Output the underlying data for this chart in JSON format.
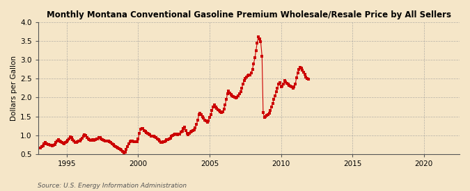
{
  "title": "Monthly Montana Conventional Gasoline Premium Wholesale/Resale Price by All Sellers",
  "ylabel": "Dollars per Gallon",
  "source": "Source: U.S. Energy Information Administration",
  "background_color": "#f5e6c8",
  "line_color": "#cc0000",
  "marker": "s",
  "markersize": 2.5,
  "linewidth": 0.8,
  "xlim": [
    1993.0,
    2022.5
  ],
  "ylim": [
    0.5,
    4.0
  ],
  "yticks": [
    0.5,
    1.0,
    1.5,
    2.0,
    2.5,
    3.0,
    3.5,
    4.0
  ],
  "xticks": [
    1995,
    2000,
    2005,
    2010,
    2015,
    2020
  ],
  "dates": [
    1993.17,
    1993.25,
    1993.33,
    1993.42,
    1993.5,
    1993.58,
    1993.67,
    1993.75,
    1993.83,
    1993.92,
    1994.0,
    1994.08,
    1994.17,
    1994.25,
    1994.33,
    1994.42,
    1994.5,
    1994.58,
    1994.67,
    1994.75,
    1994.83,
    1994.92,
    1995.0,
    1995.08,
    1995.17,
    1995.25,
    1995.33,
    1995.42,
    1995.5,
    1995.58,
    1995.67,
    1995.75,
    1995.83,
    1995.92,
    1996.0,
    1996.08,
    1996.17,
    1996.25,
    1996.33,
    1996.42,
    1996.5,
    1996.58,
    1996.67,
    1996.75,
    1996.83,
    1996.92,
    1997.0,
    1997.08,
    1997.17,
    1997.25,
    1997.33,
    1997.42,
    1997.5,
    1997.58,
    1997.67,
    1997.75,
    1997.83,
    1997.92,
    1998.0,
    1998.08,
    1998.17,
    1998.25,
    1998.33,
    1998.42,
    1998.5,
    1998.58,
    1998.67,
    1998.75,
    1998.83,
    1998.92,
    1999.0,
    1999.08,
    1999.17,
    1999.25,
    1999.33,
    1999.42,
    1999.5,
    1999.58,
    1999.67,
    1999.75,
    1999.83,
    1999.92,
    2000.0,
    2000.08,
    2000.17,
    2000.25,
    2000.33,
    2000.42,
    2000.5,
    2000.58,
    2000.67,
    2000.75,
    2000.83,
    2000.92,
    2001.0,
    2001.08,
    2001.17,
    2001.25,
    2001.33,
    2001.42,
    2001.5,
    2001.58,
    2001.67,
    2001.75,
    2001.83,
    2001.92,
    2002.0,
    2002.08,
    2002.17,
    2002.25,
    2002.33,
    2002.42,
    2002.5,
    2002.58,
    2002.67,
    2002.75,
    2002.83,
    2002.92,
    2003.0,
    2003.08,
    2003.17,
    2003.25,
    2003.33,
    2003.42,
    2003.5,
    2003.58,
    2003.67,
    2003.75,
    2003.83,
    2003.92,
    2004.0,
    2004.08,
    2004.17,
    2004.25,
    2004.33,
    2004.42,
    2004.5,
    2004.58,
    2004.67,
    2004.75,
    2004.83,
    2004.92,
    2005.0,
    2005.08,
    2005.17,
    2005.25,
    2005.33,
    2005.42,
    2005.5,
    2005.58,
    2005.67,
    2005.75,
    2005.83,
    2005.92,
    2006.0,
    2006.08,
    2006.17,
    2006.25,
    2006.33,
    2006.42,
    2006.5,
    2006.58,
    2006.67,
    2006.75,
    2006.83,
    2006.92,
    2007.0,
    2007.08,
    2007.17,
    2007.25,
    2007.33,
    2007.42,
    2007.5,
    2007.58,
    2007.67,
    2007.75,
    2007.83,
    2007.92,
    2008.0,
    2008.08,
    2008.17,
    2008.25,
    2008.33,
    2008.42,
    2008.5,
    2008.58,
    2008.67,
    2008.75,
    2008.83,
    2008.92,
    2009.0,
    2009.08,
    2009.17,
    2009.25,
    2009.33,
    2009.42,
    2009.5,
    2009.58,
    2009.67,
    2009.75,
    2009.83,
    2009.92,
    2010.0,
    2010.08,
    2010.17,
    2010.25,
    2010.33,
    2010.42,
    2010.5,
    2010.58,
    2010.67,
    2010.75,
    2010.83,
    2010.92,
    2011.0,
    2011.08,
    2011.17,
    2011.25,
    2011.33,
    2011.42,
    2011.5,
    2011.58,
    2011.67,
    2011.75,
    2011.83,
    2011.92
  ],
  "values": [
    0.67,
    0.7,
    0.72,
    0.78,
    0.8,
    0.77,
    0.75,
    0.76,
    0.74,
    0.73,
    0.72,
    0.74,
    0.75,
    0.8,
    0.85,
    0.88,
    0.84,
    0.82,
    0.8,
    0.79,
    0.78,
    0.8,
    0.82,
    0.87,
    0.9,
    0.95,
    0.93,
    0.88,
    0.84,
    0.8,
    0.8,
    0.82,
    0.84,
    0.85,
    0.88,
    0.92,
    0.98,
    1.02,
    1.0,
    0.94,
    0.9,
    0.88,
    0.87,
    0.87,
    0.88,
    0.87,
    0.88,
    0.9,
    0.9,
    0.93,
    0.93,
    0.9,
    0.88,
    0.86,
    0.85,
    0.84,
    0.84,
    0.85,
    0.82,
    0.8,
    0.78,
    0.75,
    0.72,
    0.7,
    0.68,
    0.67,
    0.65,
    0.63,
    0.6,
    0.56,
    0.52,
    0.55,
    0.62,
    0.7,
    0.78,
    0.82,
    0.84,
    0.84,
    0.82,
    0.82,
    0.82,
    0.83,
    0.9,
    1.05,
    1.15,
    1.18,
    1.17,
    1.12,
    1.1,
    1.07,
    1.05,
    1.03,
    1.02,
    0.98,
    0.98,
    0.97,
    0.95,
    0.93,
    0.9,
    0.88,
    0.85,
    0.8,
    0.8,
    0.82,
    0.83,
    0.85,
    0.88,
    0.88,
    0.9,
    0.92,
    0.97,
    1.0,
    1.02,
    1.03,
    1.03,
    1.02,
    1.03,
    1.03,
    1.08,
    1.1,
    1.18,
    1.22,
    1.12,
    1.04,
    1.02,
    1.05,
    1.08,
    1.1,
    1.12,
    1.14,
    1.2,
    1.28,
    1.4,
    1.55,
    1.58,
    1.55,
    1.5,
    1.45,
    1.4,
    1.38,
    1.35,
    1.38,
    1.48,
    1.55,
    1.65,
    1.75,
    1.8,
    1.75,
    1.72,
    1.68,
    1.65,
    1.62,
    1.6,
    1.62,
    1.7,
    1.8,
    1.95,
    2.1,
    2.18,
    2.12,
    2.08,
    2.05,
    2.02,
    2.0,
    1.98,
    2.0,
    2.05,
    2.1,
    2.15,
    2.25,
    2.35,
    2.45,
    2.5,
    2.55,
    2.58,
    2.6,
    2.6,
    2.65,
    2.75,
    2.9,
    3.05,
    3.25,
    3.45,
    3.62,
    3.55,
    3.48,
    3.1,
    1.6,
    1.48,
    1.5,
    1.52,
    1.55,
    1.58,
    1.65,
    1.75,
    1.85,
    1.95,
    2.05,
    2.15,
    2.25,
    2.35,
    2.4,
    2.28,
    2.3,
    2.35,
    2.45,
    2.42,
    2.38,
    2.35,
    2.32,
    2.3,
    2.28,
    2.25,
    2.28,
    2.35,
    2.52,
    2.65,
    2.75,
    2.8,
    2.78,
    2.72,
    2.68,
    2.62,
    2.55,
    2.5,
    2.48
  ]
}
